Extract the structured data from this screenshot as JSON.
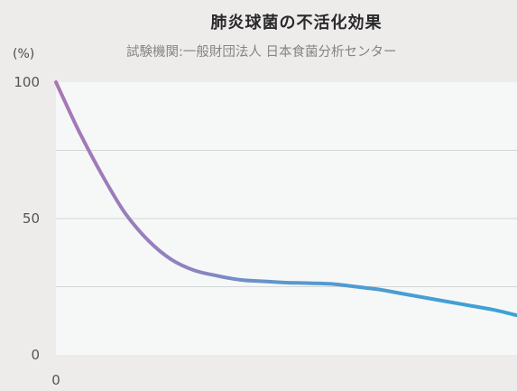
{
  "chart_data": {
    "type": "line",
    "title": "肺炎球菌の不活化効果",
    "subtitle": "試験機関:一般財団法人 日本食菌分析センター",
    "y_unit": "(%)",
    "ylim": [
      0,
      100
    ],
    "y_ticks": [
      "100",
      "50",
      "0"
    ],
    "x_ticks": [
      "0"
    ],
    "grid": true,
    "series": [
      {
        "x": [
          0,
          5,
          10,
          15,
          20,
          25,
          30,
          35,
          40,
          45,
          50,
          55,
          60,
          65,
          70,
          75,
          80,
          85,
          90,
          95,
          100
        ],
        "values": [
          100,
          82,
          66,
          52,
          42,
          35,
          31,
          29,
          27.5,
          27,
          26.5,
          26.3,
          26,
          25,
          24,
          22.5,
          21,
          19.5,
          18,
          16.5,
          14.5
        ]
      }
    ],
    "colors": {
      "line_start": "#a877b5",
      "line_end": "#3aa3d6",
      "plot_bg": "#f6f8f8",
      "grid": "#d3d6d6"
    }
  }
}
